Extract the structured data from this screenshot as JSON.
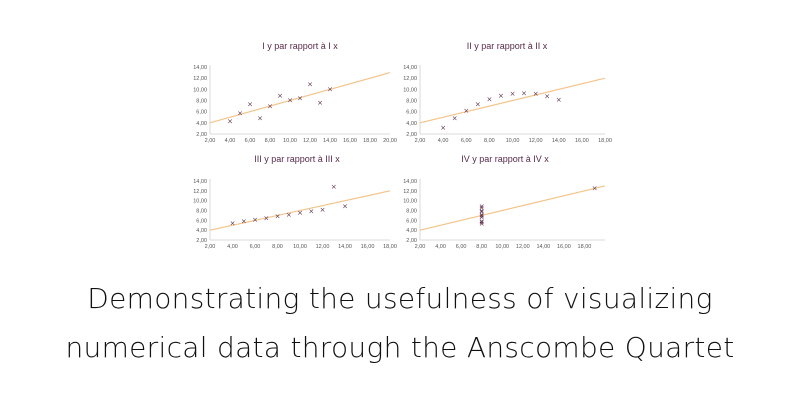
{
  "headline": {
    "line1": "Demonstrating the usefulness of visualizing",
    "line2": "numerical data through the Anscombe Quartet"
  },
  "chart_data": [
    {
      "type": "scatter",
      "title": "I y par rapport à I x",
      "xlim": [
        2,
        20
      ],
      "ylim": [
        2,
        14
      ],
      "xticks": [
        "2,00",
        "4,00",
        "6,00",
        "8,00",
        "10,00",
        "12,00",
        "14,00",
        "16,00",
        "18,00",
        "20,00"
      ],
      "yticks": [
        "2,00",
        "4,00",
        "6,00",
        "8,00",
        "10,00",
        "12,00",
        "14,00"
      ],
      "marker": "×",
      "trendline": {
        "slope": 0.5,
        "intercept": 3.0
      },
      "x": [
        10,
        8,
        13,
        9,
        11,
        14,
        6,
        4,
        12,
        7,
        5
      ],
      "y": [
        8.04,
        6.95,
        7.58,
        8.81,
        8.33,
        9.96,
        7.24,
        4.26,
        10.84,
        4.82,
        5.68
      ]
    },
    {
      "type": "scatter",
      "title": "II y par rapport à II x",
      "xlim": [
        2,
        18
      ],
      "ylim": [
        2,
        14
      ],
      "xticks": [
        "2,00",
        "4,00",
        "6,00",
        "8,00",
        "10,00",
        "12,00",
        "14,00",
        "16,00",
        "18,00"
      ],
      "yticks": [
        "2,00",
        "4,00",
        "6,00",
        "8,00",
        "10,00",
        "12,00",
        "14,00"
      ],
      "marker": "×",
      "trendline": {
        "slope": 0.5,
        "intercept": 3.0
      },
      "x": [
        10,
        8,
        13,
        9,
        11,
        14,
        6,
        4,
        12,
        7,
        5
      ],
      "y": [
        9.14,
        8.14,
        8.74,
        8.77,
        9.26,
        8.1,
        6.13,
        3.1,
        9.13,
        7.26,
        4.74
      ]
    },
    {
      "type": "scatter",
      "title": "III y par rapport à III x",
      "xlim": [
        2,
        18
      ],
      "ylim": [
        2,
        14
      ],
      "xticks": [
        "2,00",
        "4,00",
        "6,00",
        "8,00",
        "10,00",
        "12,00",
        "14,00",
        "16,00",
        "18,00"
      ],
      "yticks": [
        "2,00",
        "4,00",
        "6,00",
        "8,00",
        "10,00",
        "12,00",
        "14,00"
      ],
      "marker": "×",
      "trendline": {
        "slope": 0.5,
        "intercept": 3.0
      },
      "x": [
        10,
        8,
        13,
        9,
        11,
        14,
        6,
        4,
        12,
        7,
        5
      ],
      "y": [
        7.46,
        6.77,
        12.74,
        7.11,
        7.81,
        8.84,
        6.08,
        5.39,
        8.15,
        6.42,
        5.73
      ]
    },
    {
      "type": "scatter",
      "title": "IV y par rapport à IV x",
      "xlim": [
        2,
        20
      ],
      "ylim": [
        2,
        14
      ],
      "xticks": [
        "2,00",
        "4,00",
        "6,00",
        "8,00",
        "10,00",
        "12,00",
        "14,00",
        "16,00",
        "18,00"
      ],
      "yticks": [
        "2,00",
        "4,00",
        "6,00",
        "8,00",
        "10,00",
        "12,00",
        "14,00"
      ],
      "marker": "×",
      "trendline": {
        "slope": 0.5,
        "intercept": 3.0
      },
      "x": [
        8,
        8,
        8,
        8,
        8,
        8,
        8,
        19,
        8,
        8,
        8
      ],
      "y": [
        6.58,
        5.76,
        7.71,
        8.84,
        8.47,
        7.04,
        5.25,
        12.5,
        5.56,
        7.91,
        6.89
      ]
    }
  ]
}
